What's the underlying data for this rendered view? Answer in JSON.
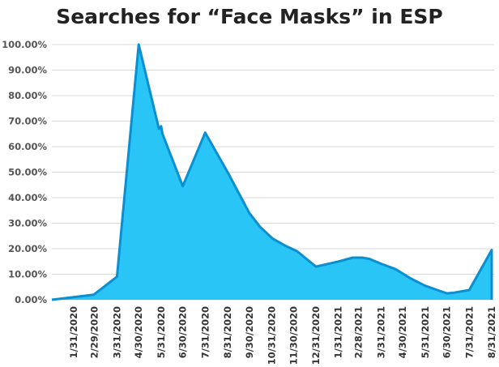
{
  "chart_data": {
    "type": "area",
    "title": "Searches for “Face Masks” in ESP",
    "xlabel": "",
    "ylabel": "",
    "ylim": [
      0,
      100
    ],
    "grid": true,
    "legend": "none",
    "fill_color": "#29c5f6",
    "line_color": "#0a8fd1",
    "y_tick_labels": [
      "0.00%",
      "10.00%",
      "20.00%",
      "30.00%",
      "40.00%",
      "50.00%",
      "60.00%",
      "70.00%",
      "80.00%",
      "90.00%",
      "100.00%"
    ],
    "x_tick_labels": [
      "1/31/2020",
      "2/29/2020",
      "3/31/2020",
      "4/30/2020",
      "5/31/2020",
      "6/30/2020",
      "7/31/2020",
      "8/31/2020",
      "9/30/2020",
      "10/31/2020",
      "11/30/2020",
      "12/31/2020",
      "1/31/2021",
      "2/28/2021",
      "3/31/2021",
      "4/30/2021",
      "5/31/2021",
      "6/30/2021",
      "7/31/2021",
      "8/31/2021"
    ],
    "series": [
      {
        "x": [
          "2020-01-01",
          "2020-02-28",
          "2020-03-31",
          "2020-04-30",
          "2020-05-28",
          "2020-05-31",
          "2020-06-02",
          "2020-06-30",
          "2020-07-31",
          "2020-08-31",
          "2020-09-30",
          "2020-10-15",
          "2020-11-01",
          "2020-11-20",
          "2020-12-05",
          "2020-12-31",
          "2021-01-31",
          "2021-02-20",
          "2021-03-05",
          "2021-03-15",
          "2021-04-01",
          "2021-04-20",
          "2021-05-10",
          "2021-05-31",
          "2021-06-20",
          "2021-06-30",
          "2021-07-10",
          "2021-07-31",
          "2021-08-31"
        ],
        "values": [
          0,
          2,
          9,
          100,
          67,
          68,
          65,
          44.5,
          65.5,
          50,
          34,
          28.5,
          24,
          21,
          19,
          13,
          15,
          16.5,
          16.5,
          16,
          14,
          12,
          8.5,
          5.5,
          3.5,
          2.5,
          2.8,
          3.8,
          19.5
        ]
      }
    ]
  }
}
